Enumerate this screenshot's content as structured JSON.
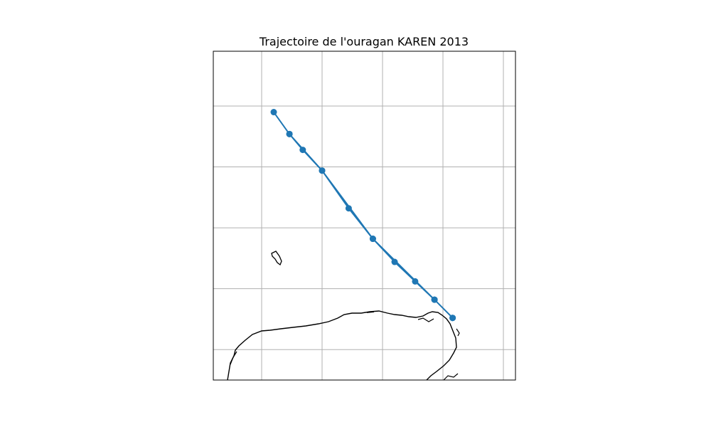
{
  "title": "Trajectoire de l'ouragan KAREN 2013",
  "colors": {
    "track": "#1f77b4",
    "grid": "#b0b0b0",
    "coast": "#000000",
    "frame": "#000000"
  },
  "map": {
    "lon_range": [
      -90.7,
      -88.2
    ],
    "lat_range": [
      28.5,
      31.2
    ],
    "gridline_lons": [
      -90.3,
      -89.8,
      -89.3,
      -88.8,
      -88.3
    ],
    "gridline_lats": [
      28.75,
      29.25,
      29.75,
      30.25,
      30.75
    ],
    "grid": true
  },
  "chart_data": {
    "type": "scatter",
    "title": "Trajectoire de l'ouragan KAREN 2013",
    "series": [
      {
        "points": [
          {
            "lon": -88.72,
            "lat": 29.01
          },
          {
            "lon": -88.87,
            "lat": 29.16
          },
          {
            "lon": -89.03,
            "lat": 29.31
          },
          {
            "lon": -89.2,
            "lat": 29.47
          },
          {
            "lon": -89.38,
            "lat": 29.66
          },
          {
            "lon": -89.58,
            "lat": 29.91
          },
          {
            "lon": -89.8,
            "lat": 30.22
          },
          {
            "lon": -89.96,
            "lat": 30.39
          },
          {
            "lon": -90.07,
            "lat": 30.52
          },
          {
            "lon": -90.2,
            "lat": 30.7
          },
          {
            "lon": -90.07,
            "lat": 30.52
          },
          {
            "lon": -89.8,
            "lat": 30.22
          },
          {
            "lon": -89.38,
            "lat": 29.66
          },
          {
            "lon": -88.87,
            "lat": 29.16
          },
          {
            "lon": -88.72,
            "lat": 29.01
          }
        ]
      }
    ]
  }
}
